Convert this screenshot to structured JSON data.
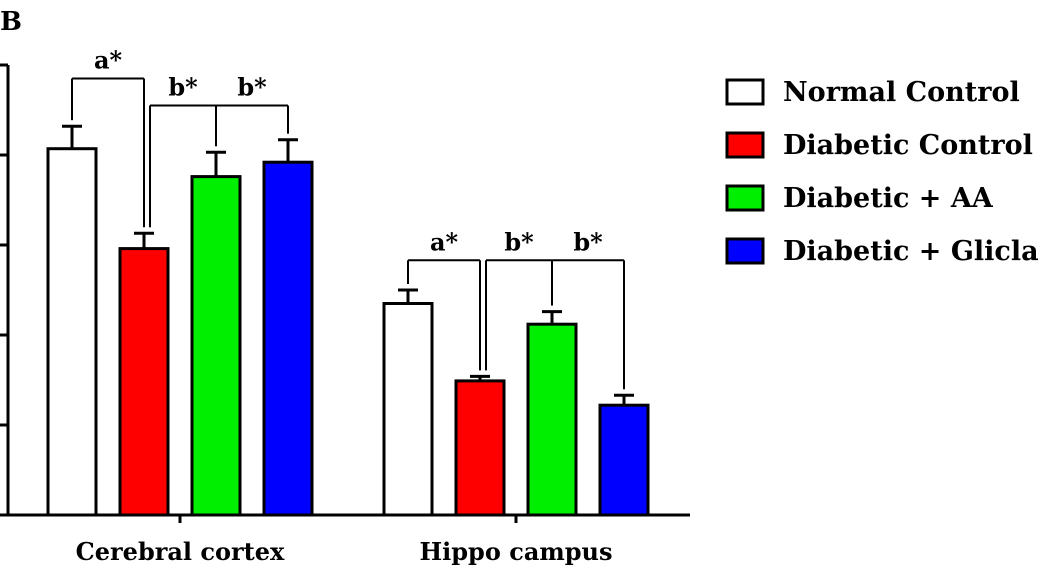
{
  "panel_label": "B",
  "chart_data": {
    "type": "bar",
    "title": "",
    "xlabel": "",
    "ylabel": "",
    "ylim": [
      0,
      5
    ],
    "yticks": [
      0,
      1,
      2,
      3,
      4,
      5
    ],
    "categories": [
      "Cerebral cortex",
      "Hippo campus"
    ],
    "series": [
      {
        "name": "Normal Control",
        "color": "#ffffff",
        "values": [
          4.07,
          2.35
        ],
        "errors": [
          0.25,
          0.15
        ]
      },
      {
        "name": "Diabetic Control",
        "color": "#ff0000",
        "values": [
          2.96,
          1.49
        ],
        "errors": [
          0.17,
          0.05
        ]
      },
      {
        "name": "Diabetic + AA",
        "color": "#00ee00",
        "values": [
          3.76,
          2.12
        ],
        "errors": [
          0.27,
          0.14
        ]
      },
      {
        "name": "Diabetic + Gliclazide",
        "color": "#0000ff",
        "values": [
          3.92,
          1.22
        ],
        "errors": [
          0.25,
          0.11
        ]
      }
    ],
    "significance": [
      {
        "category": 0,
        "from": 0,
        "to": 1,
        "label": "a*",
        "level": 4.85
      },
      {
        "category": 0,
        "from": 1,
        "to": 3,
        "label": "b*",
        "level": 4.55,
        "ticks": [
          2
        ]
      },
      {
        "category": 1,
        "from": 0,
        "to": 1,
        "label": "a*",
        "level": 2.83
      },
      {
        "category": 1,
        "from": 1,
        "to": 3,
        "label": "b*",
        "level": 2.83,
        "ticks": [
          2
        ]
      }
    ],
    "legend_position": "right"
  }
}
